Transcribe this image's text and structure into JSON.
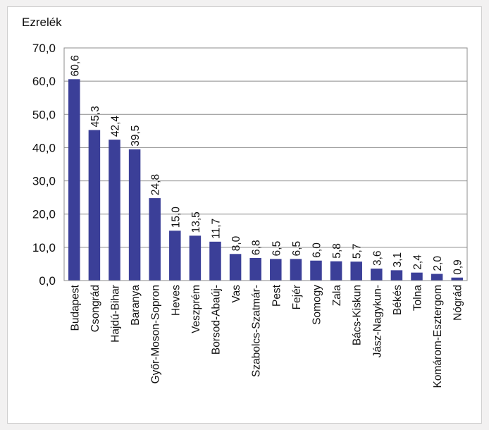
{
  "chart_data": {
    "type": "bar",
    "ylabel": "Ezrelék",
    "xlabel": "",
    "title": "",
    "ylim": [
      0,
      70
    ],
    "yticks": [
      0,
      10,
      20,
      30,
      40,
      50,
      60,
      70
    ],
    "ytick_labels": [
      "0,0",
      "10,0",
      "20,0",
      "30,0",
      "40,0",
      "50,0",
      "60,0",
      "70,0"
    ],
    "categories": [
      "Budapest",
      "Csongrád",
      "Hajdú-Bihar",
      "Baranya",
      "Győr-Moson-Sopron",
      "Heves",
      "Veszprém",
      "Borsod-Abaúj-",
      "Vas",
      "Szabolcs-Szatmár-",
      "Pest",
      "Fejér",
      "Somogy",
      "Zala",
      "Bács-Kiskun",
      "Jász-Nagykun-",
      "Békés",
      "Tolna",
      "Komárom-Esztergom",
      "Nógrád"
    ],
    "values": [
      60.6,
      45.3,
      42.4,
      39.5,
      24.8,
      15.0,
      13.5,
      11.7,
      8.0,
      6.8,
      6.5,
      6.5,
      6.0,
      5.8,
      5.7,
      3.6,
      3.1,
      2.4,
      2.0,
      0.9
    ],
    "value_labels": [
      "60,6",
      "45,3",
      "42,4",
      "39,5",
      "24,8",
      "15,0",
      "13,5",
      "11,7",
      "8,0",
      "6,8",
      "6,5",
      "6,5",
      "6,0",
      "5,8",
      "5,7",
      "3,6",
      "3,1",
      "2,4",
      "2,0",
      "0,9"
    ],
    "grid": true,
    "legend": "none",
    "bar_color": "#3b3f98",
    "grid_color": "#8c8c8c"
  }
}
